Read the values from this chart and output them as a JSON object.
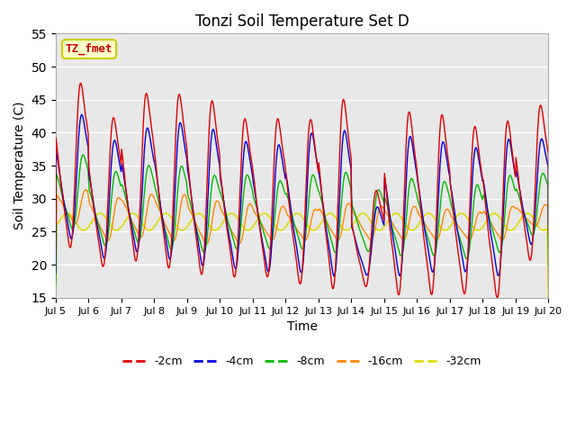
{
  "title": "Tonzi Soil Temperature Set D",
  "xlabel": "Time",
  "ylabel": "Soil Temperature (C)",
  "ylim": [
    15,
    55
  ],
  "yticks": [
    15,
    20,
    25,
    30,
    35,
    40,
    45,
    50,
    55
  ],
  "xtick_labels": [
    "Jul 5",
    "Jul 6",
    "Jul 7",
    "Jul 8",
    "Jul 9",
    "Jul 10",
    "Jul 11",
    "Jul 12",
    "Jul 13",
    "Jul 14",
    "Jul 15",
    "Jul 16",
    "Jul 17",
    "Jul 18",
    "Jul 19",
    "Jul 20"
  ],
  "annotation_text": "TZ_fmet",
  "annotation_color": "#cc0000",
  "annotation_bg": "#ffffcc",
  "annotation_border": "#cccc00",
  "colors": {
    "-2cm": "#dd0000",
    "-4cm": "#0000dd",
    "-8cm": "#00bb00",
    "-16cm": "#ff8800",
    "-32cm": "#dddd00"
  },
  "bg_color": "#e8e8e8",
  "grid_color": "#ffffff",
  "peaks_2cm": [
    50.5,
    45.0,
    49.0,
    49.0,
    48.0,
    45.0,
    45.0,
    45.0,
    48.5,
    33.0,
    46.5,
    46.0,
    44.0,
    45.0,
    47.0
  ],
  "troughs_2cm": [
    24.0,
    21.0,
    22.0,
    21.0,
    20.0,
    19.5,
    19.5,
    18.5,
    18.0,
    17.5,
    17.0,
    17.0,
    17.0,
    16.5,
    22.0
  ],
  "peaks_4cm": [
    45.0,
    41.0,
    43.0,
    44.0,
    43.0,
    41.0,
    40.5,
    42.5,
    43.0,
    30.0,
    42.0,
    41.0,
    40.0,
    41.5,
    41.0
  ],
  "troughs_4cm": [
    25.0,
    22.0,
    23.0,
    22.0,
    21.0,
    20.5,
    20.0,
    20.0,
    19.5,
    19.0,
    19.5,
    20.0,
    20.0,
    19.5,
    24.0
  ],
  "peaks_8cm": [
    38.0,
    35.5,
    36.5,
    36.5,
    35.0,
    35.0,
    34.0,
    35.0,
    35.5,
    32.5,
    34.5,
    34.0,
    33.5,
    35.0,
    35.0
  ],
  "troughs_8cm": [
    26.0,
    23.5,
    24.0,
    23.0,
    22.5,
    23.0,
    23.0,
    23.0,
    22.5,
    22.5,
    22.0,
    22.0,
    21.5,
    22.5,
    25.0
  ],
  "peaks_16cm": [
    32.0,
    31.0,
    31.5,
    31.5,
    30.5,
    30.0,
    29.5,
    29.0,
    30.0,
    29.5,
    29.5,
    29.0,
    28.5,
    29.5,
    29.5
  ],
  "troughs_16cm": [
    26.5,
    24.0,
    24.5,
    24.0,
    23.5,
    23.5,
    24.0,
    24.0,
    24.0,
    24.0,
    24.0,
    24.0,
    24.0,
    24.0,
    26.0
  ],
  "mean_32cm": 26.5,
  "amp_32cm": 1.3,
  "phase_lag_32cm": 0.5
}
